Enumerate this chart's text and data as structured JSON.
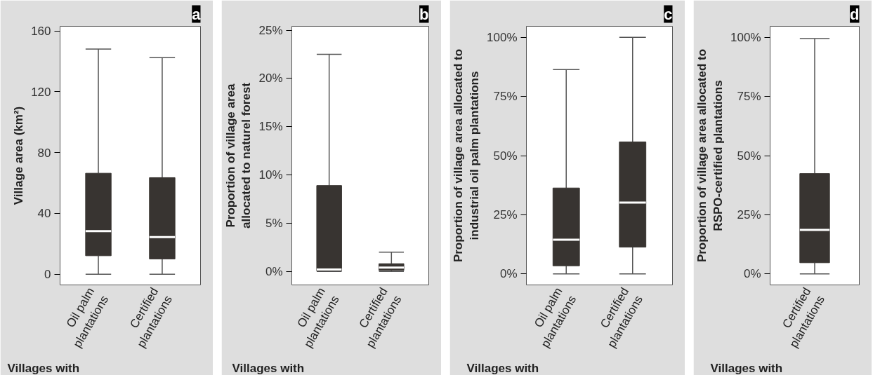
{
  "chart_data": [
    {
      "type": "box",
      "title": "a",
      "xlabel": "Villages with",
      "ylabel": "Village area (km²)",
      "categories": [
        "Oil palm plantations",
        "Certified plantations"
      ],
      "ylim": [
        -7,
        163
      ],
      "yticks": [
        0,
        40,
        80,
        120,
        160
      ],
      "grid": false,
      "series": [
        {
          "color": "#383431",
          "boxes": [
            {
              "low": 0,
              "q1": 12.2,
              "median": 28.4,
              "q3": 66.4,
              "high": 148
            },
            {
              "low": 0,
              "q1": 10.1,
              "median": 24.5,
              "q3": 63.5,
              "high": 142.4
            }
          ]
        }
      ]
    },
    {
      "type": "box",
      "title": "b",
      "xlabel": "Villages with",
      "ylabel": "Proportion of village area\nallocated to naturel forest",
      "categories": [
        "Oil palm plantations",
        "Certified plantations"
      ],
      "ylim": [
        -1.4,
        25.4
      ],
      "yticks": [
        {
          "value": 0,
          "label": "0%"
        },
        {
          "value": 5,
          "label": "5%"
        },
        {
          "value": 10,
          "label": "10%"
        },
        {
          "value": 15,
          "label": "15%"
        },
        {
          "value": 20,
          "label": "20%"
        },
        {
          "value": 25,
          "label": "25%"
        }
      ],
      "grid": false,
      "series": [
        {
          "color": "#383431",
          "boxes": [
            {
              "low": 0,
              "q1": 0.05,
              "median": 0.2,
              "q3": 8.9,
              "high": 22.5
            },
            {
              "low": 0,
              "q1": 0.1,
              "median": 0.4,
              "q3": 0.8,
              "high": 2.0
            }
          ]
        }
      ]
    },
    {
      "type": "box",
      "title": "c",
      "xlabel": "Villages with",
      "ylabel": "Proportion of village area allocated to\nindustrial oil palm plantations",
      "categories": [
        "Oil palm plantations",
        "Certified plantations"
      ],
      "ylim": [
        -4.7,
        104.7
      ],
      "yticks": [
        {
          "value": 0,
          "label": "0%"
        },
        {
          "value": 25,
          "label": "25%"
        },
        {
          "value": 50,
          "label": "50%"
        },
        {
          "value": 75,
          "label": "75%"
        },
        {
          "value": 100,
          "label": "100%"
        }
      ],
      "grid": false,
      "series": [
        {
          "color": "#383431",
          "boxes": [
            {
              "low": 0,
              "q1": 3.4,
              "median": 14.4,
              "q3": 36.3,
              "high": 86.4
            },
            {
              "low": 0,
              "q1": 11.3,
              "median": 30.1,
              "q3": 55.8,
              "high": 100
            }
          ]
        }
      ]
    },
    {
      "type": "box",
      "title": "d",
      "xlabel": "Villages with",
      "ylabel": "Proportion of village area allocated to\nRSPO-certified plantations",
      "categories": [
        "Certified plantations"
      ],
      "ylim": [
        -4.7,
        104.7
      ],
      "yticks": [
        {
          "value": 0,
          "label": "0%"
        },
        {
          "value": 25,
          "label": "25%"
        },
        {
          "value": 50,
          "label": "50%"
        },
        {
          "value": 75,
          "label": "75%"
        },
        {
          "value": 100,
          "label": "100%"
        }
      ],
      "grid": false,
      "series": [
        {
          "color": "#383431",
          "boxes": [
            {
              "low": 0,
              "q1": 4.7,
              "median": 18.6,
              "q3": 42.4,
              "high": 99.5
            }
          ]
        }
      ]
    }
  ]
}
